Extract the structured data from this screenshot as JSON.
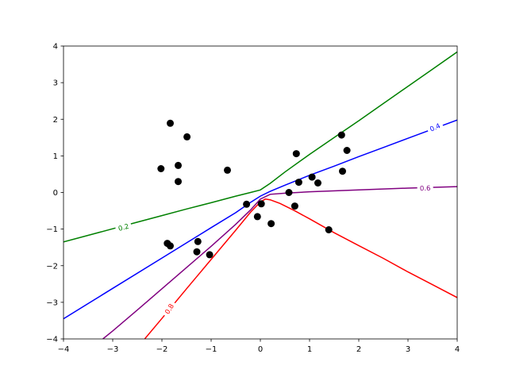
{
  "chart_data": {
    "type": "scatter",
    "title": "",
    "xlabel": "",
    "ylabel": "",
    "xlim": [
      -4,
      4
    ],
    "ylim": [
      -4,
      4
    ],
    "xticks": [
      -4,
      -3,
      -2,
      -1,
      0,
      1,
      2,
      3,
      4
    ],
    "yticks": [
      -4,
      -3,
      -2,
      -1,
      0,
      1,
      2,
      3,
      4
    ],
    "xtick_labels": [
      "−4",
      "−3",
      "−2",
      "−1",
      "0",
      "1",
      "2",
      "3",
      "4"
    ],
    "ytick_labels": [
      "−4",
      "−3",
      "−2",
      "−1",
      "0",
      "1",
      "2",
      "3",
      "4"
    ],
    "grid": false,
    "points": {
      "color": "#000000",
      "x": [
        -1.83,
        -1.49,
        -2.02,
        -1.67,
        -1.67,
        -0.67,
        -1.89,
        -1.83,
        -1.27,
        -1.29,
        -1.03,
        -0.28,
        0.02,
        -0.06,
        0.22,
        0.58,
        0.7,
        0.73,
        0.78,
        1.05,
        1.17,
        1.65,
        1.76,
        1.67,
        1.39
      ],
      "y": [
        1.89,
        1.52,
        0.65,
        0.74,
        0.3,
        0.61,
        -1.39,
        -1.46,
        -1.34,
        -1.62,
        -1.7,
        -0.32,
        -0.31,
        -0.66,
        -0.85,
        0.0,
        -0.37,
        1.06,
        0.28,
        0.42,
        0.26,
        1.57,
        1.15,
        0.58,
        -1.02
      ]
    },
    "contours": [
      {
        "level": "0.2",
        "color": "#008000",
        "x": [
          -4,
          -3.5,
          -3,
          -2.5,
          -2,
          -1.5,
          -1,
          -0.5,
          -0.2,
          0,
          0.2,
          0.5,
          1,
          1.5,
          2,
          2.5,
          3,
          3.5,
          4
        ],
        "y": [
          -1.35,
          -1.17,
          -0.99,
          -0.81,
          -0.63,
          -0.45,
          -0.28,
          -0.1,
          0.0,
          0.07,
          0.25,
          0.56,
          1.04,
          1.5,
          1.96,
          2.43,
          2.9,
          3.37,
          3.84
        ]
      },
      {
        "level": "0.4",
        "color": "#0000ff",
        "x": [
          -4,
          -3,
          -2,
          -1,
          -0.5,
          -0.2,
          0,
          0.2,
          0.5,
          1,
          1.5,
          2,
          2.5,
          3,
          3.5,
          4
        ],
        "y": [
          -3.45,
          -2.62,
          -1.79,
          -0.96,
          -0.55,
          -0.27,
          -0.1,
          0.03,
          0.2,
          0.47,
          0.72,
          0.98,
          1.23,
          1.48,
          1.73,
          1.98
        ]
      },
      {
        "level": "0.6",
        "color": "#800080",
        "x": [
          -3.2,
          -3,
          -2.5,
          -2,
          -1.5,
          -1,
          -0.5,
          -0.2,
          0,
          0.2,
          0.5,
          1,
          2,
          3,
          4
        ],
        "y": [
          -4,
          -3.78,
          -3.21,
          -2.63,
          -2.05,
          -1.47,
          -0.87,
          -0.48,
          -0.18,
          -0.05,
          -0.02,
          0.02,
          0.07,
          0.12,
          0.16
        ]
      },
      {
        "level": "0.8",
        "color": "#ff0000",
        "x": [
          -2.35,
          -2,
          -1.5,
          -1,
          -0.5,
          -0.2,
          0,
          0.1,
          0.2,
          0.4,
          0.7,
          1,
          1.5,
          2,
          2.5,
          3,
          3.5,
          4
        ],
        "y": [
          -4,
          -3.44,
          -2.63,
          -1.83,
          -1.03,
          -0.54,
          -0.26,
          -0.18,
          -0.2,
          -0.3,
          -0.5,
          -0.72,
          -1.1,
          -1.45,
          -1.8,
          -2.17,
          -2.52,
          -2.87
        ]
      }
    ],
    "contour_labels": [
      {
        "text": "0.2",
        "color": "#008000",
        "x": -2.78,
        "y": -0.95,
        "angle": -15
      },
      {
        "text": "0.4",
        "color": "#0000ff",
        "x": 3.55,
        "y": 1.78,
        "angle": -24
      },
      {
        "text": "0.6",
        "color": "#800080",
        "x": 3.35,
        "y": 0.12,
        "angle": -2
      },
      {
        "text": "0.8",
        "color": "#ff0000",
        "x": -1.85,
        "y": -3.18,
        "angle": -58
      }
    ]
  }
}
